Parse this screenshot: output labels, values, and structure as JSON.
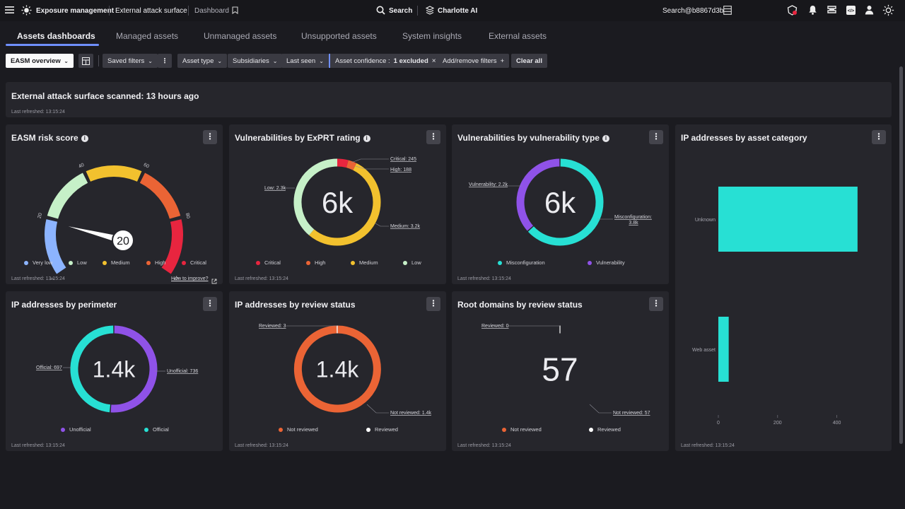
{
  "topbar": {
    "app": "Exposure management",
    "section": "External attack surface",
    "page": "Dashboard",
    "search": "Search",
    "assistant": "Charlotte AI",
    "user_search": "Search@b8867d3b"
  },
  "tabs": [
    "Assets dashboards",
    "Managed assets",
    "Unmanaged assets",
    "Unsupported assets",
    "System insights",
    "External assets"
  ],
  "filters": {
    "view": "EASM overview",
    "saved": "Saved filters",
    "asset_type": "Asset type",
    "subsidiaries": "Subsidiaries",
    "last_seen": "Last seen",
    "confidence_label": "Asset confidence :",
    "confidence_value": "1 excluded",
    "add_remove": "Add/remove filters",
    "clear": "Clear all"
  },
  "banner": {
    "title": "External attack surface scanned: 13 hours ago",
    "refreshed": "Last refreshed: 13:15:24"
  },
  "risk": {
    "title": "EASM risk score",
    "score": "20",
    "ticks": [
      "0",
      "20",
      "40",
      "60",
      "80",
      "100"
    ],
    "legend": [
      "Very low",
      "Low",
      "Medium",
      "High",
      "Critical"
    ],
    "colors": [
      "#8cb4ff",
      "#c6f0c8",
      "#f2c12e",
      "#eb6435",
      "#e8253f"
    ],
    "improve": "How to improve?",
    "refreshed": "Last refreshed: 13:15:24"
  },
  "exprt": {
    "title": "Vulnerabilities by ExPRT rating",
    "center": "6k",
    "labels": {
      "critical": "Critical: 245",
      "high": "High: 188",
      "low": "Low: 2.3k",
      "medium": "Medium: 3.2k"
    },
    "legend": [
      "Critical",
      "High",
      "Medium",
      "Low"
    ],
    "colors": [
      "#e8253f",
      "#eb6435",
      "#f2c12e",
      "#c6f0c8"
    ],
    "refreshed": "Last refreshed: 13:15:24"
  },
  "vtype": {
    "title": "Vulnerabilities by vulnerability type",
    "center": "6k",
    "labels": {
      "vulnerability": "Vulnerability: 2.2k",
      "misconfig_1": "Misconfiguration:",
      "misconfig_2": "3.8k"
    },
    "legend": [
      "Misconfiguration",
      "Vulnerability"
    ],
    "colors": [
      "#27e0d4",
      "#8f52e8"
    ],
    "refreshed": "Last refreshed: 13:15:24"
  },
  "category": {
    "title": "IP addresses by asset category",
    "refreshed": "Last refreshed: 13:15:24",
    "color": "#27e0d4"
  },
  "perimeter": {
    "title": "IP addresses by perimeter",
    "center": "1.4k",
    "labels": {
      "official": "Official: 697",
      "unofficial": "Unofficial: 736"
    },
    "legend": [
      "Unofficial",
      "Official"
    ],
    "colors": [
      "#8f52e8",
      "#27e0d4"
    ],
    "refreshed": "Last refreshed: 13:15:24"
  },
  "ipreview": {
    "title": "IP addresses by review status",
    "center": "1.4k",
    "labels": {
      "reviewed": "Reviewed: 3",
      "not_reviewed": "Not reviewed: 1.4k"
    },
    "legend": [
      "Not reviewed",
      "Reviewed"
    ],
    "colors": [
      "#eb6435",
      "#ffffff"
    ],
    "refreshed": "Last refreshed: 13:15:24"
  },
  "rootreview": {
    "title": "Root domains by review status",
    "center": "57",
    "labels": {
      "reviewed": "Reviewed: 0",
      "not_reviewed": "Not reviewed: 57"
    },
    "legend": [
      "Not reviewed",
      "Reviewed"
    ],
    "colors": [
      "#eb6435",
      "#ffffff"
    ],
    "refreshed": "Last refreshed: 13:15:24"
  },
  "chart_data": [
    {
      "type": "pie",
      "title": "Vulnerabilities by ExPRT rating",
      "categories": [
        "Critical",
        "High",
        "Medium",
        "Low"
      ],
      "values": [
        245,
        188,
        3200,
        2300
      ],
      "total_label": "6k"
    },
    {
      "type": "pie",
      "title": "Vulnerabilities by vulnerability type",
      "categories": [
        "Misconfiguration",
        "Vulnerability"
      ],
      "values": [
        3800,
        2200
      ],
      "total_label": "6k"
    },
    {
      "type": "bar",
      "title": "IP addresses by asset category",
      "categories": [
        "Unknown",
        "Web asset"
      ],
      "values": [
        470,
        35
      ],
      "xticks": [
        "0",
        "200",
        "400"
      ],
      "xlim": [
        0,
        530
      ]
    },
    {
      "type": "pie",
      "title": "IP addresses by perimeter",
      "categories": [
        "Unofficial",
        "Official"
      ],
      "values": [
        736,
        697
      ],
      "total_label": "1.4k"
    },
    {
      "type": "pie",
      "title": "IP addresses by review status",
      "categories": [
        "Not reviewed",
        "Reviewed"
      ],
      "values": [
        1400,
        3
      ],
      "total_label": "1.4k"
    },
    {
      "type": "pie",
      "title": "Root domains by review status",
      "categories": [
        "Not reviewed",
        "Reviewed"
      ],
      "values": [
        57,
        0
      ],
      "total_label": "57"
    }
  ]
}
